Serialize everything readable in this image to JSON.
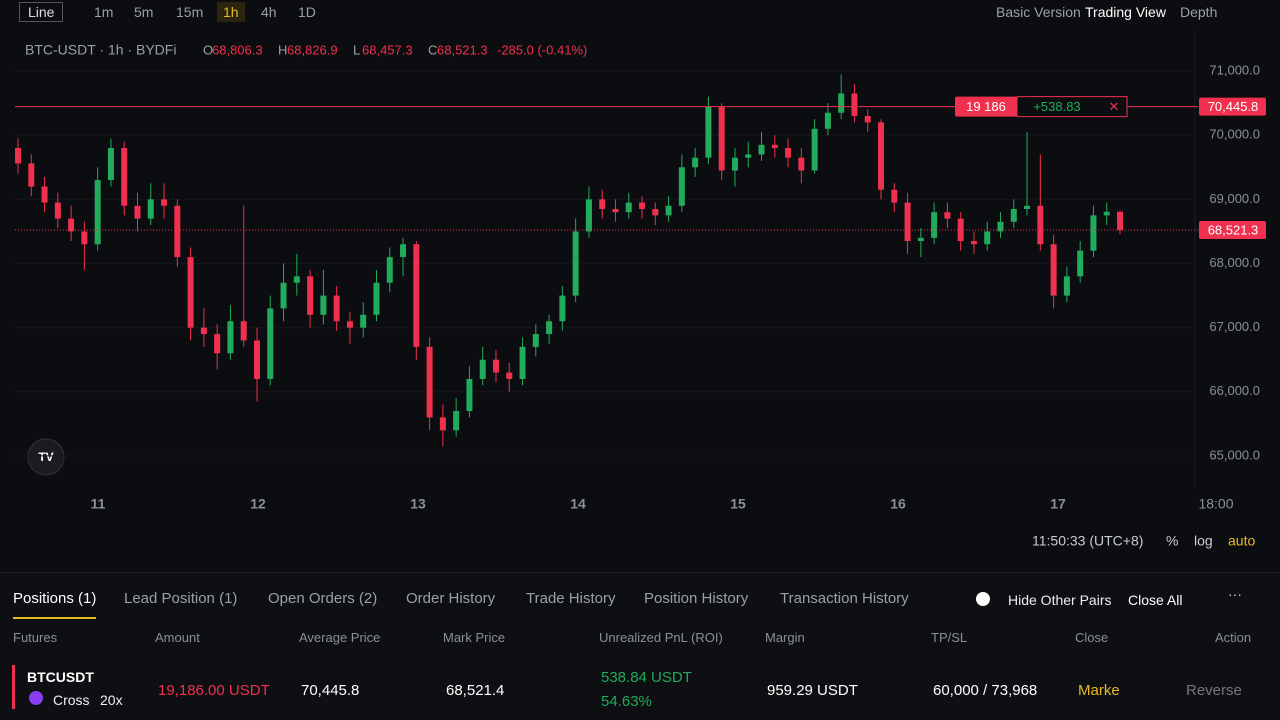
{
  "toolbar": {
    "chart_type": "Line",
    "intervals": [
      "1m",
      "5m",
      "15m",
      "1h",
      "4h",
      "1D"
    ],
    "active_interval": 3,
    "views": [
      "Basic Version",
      "Trading View"
    ],
    "active_view": 1,
    "depth": "Depth"
  },
  "chart_data": {
    "type": "candlestick",
    "title": "BTC-USDT · 1h · BYDFi",
    "ohlc_legend": [
      {
        "key": "O",
        "text": "68,806.3"
      },
      {
        "key": "H",
        "text": "68,826.9"
      },
      {
        "key": "L",
        "text": "68,457.3"
      },
      {
        "key": "C",
        "text": "68,521.3"
      }
    ],
    "change": "-285.0 (-0.41%)",
    "up_color": "#22ab5c",
    "down_color": "#f0304f",
    "candles": [
      [
        69800,
        69950,
        69400,
        69560
      ],
      [
        69560,
        69700,
        69050,
        69200
      ],
      [
        69200,
        69350,
        68800,
        68950
      ],
      [
        68950,
        69100,
        68550,
        68700
      ],
      [
        68700,
        68900,
        68350,
        68500
      ],
      [
        68500,
        68650,
        67900,
        68300
      ],
      [
        68300,
        69500,
        68200,
        69300
      ],
      [
        69300,
        69950,
        69200,
        69800
      ],
      [
        69800,
        69900,
        68750,
        68900
      ],
      [
        68900,
        69100,
        68500,
        68700
      ],
      [
        68700,
        69250,
        68600,
        69000
      ],
      [
        69000,
        69250,
        68700,
        68900
      ],
      [
        68900,
        69000,
        67950,
        68100
      ],
      [
        68100,
        68250,
        66800,
        67000
      ],
      [
        67000,
        67300,
        66700,
        66900
      ],
      [
        66900,
        67050,
        66350,
        66600
      ],
      [
        66600,
        67350,
        66500,
        67100
      ],
      [
        67100,
        68900,
        66700,
        66800
      ],
      [
        66800,
        67000,
        65850,
        66200
      ],
      [
        66200,
        67500,
        66100,
        67300
      ],
      [
        67300,
        68000,
        67100,
        67700
      ],
      [
        67700,
        68150,
        67500,
        67800
      ],
      [
        67800,
        67900,
        67000,
        67200
      ],
      [
        67200,
        67900,
        67050,
        67500
      ],
      [
        67500,
        67650,
        66950,
        67100
      ],
      [
        67100,
        67250,
        66750,
        67000
      ],
      [
        67000,
        67400,
        66850,
        67200
      ],
      [
        67200,
        67900,
        67100,
        67700
      ],
      [
        67700,
        68250,
        67550,
        68100
      ],
      [
        68100,
        68400,
        67800,
        68300
      ],
      [
        68300,
        68350,
        66500,
        66700
      ],
      [
        66700,
        66850,
        65400,
        65600
      ],
      [
        65600,
        65800,
        65150,
        65400
      ],
      [
        65400,
        65900,
        65300,
        65700
      ],
      [
        65700,
        66400,
        65600,
        66200
      ],
      [
        66200,
        66700,
        66100,
        66500
      ],
      [
        66500,
        66650,
        66150,
        66300
      ],
      [
        66300,
        66450,
        66000,
        66200
      ],
      [
        66200,
        66850,
        66100,
        66700
      ],
      [
        66700,
        67050,
        66550,
        66900
      ],
      [
        66900,
        67200,
        66750,
        67100
      ],
      [
        67100,
        67650,
        66950,
        67500
      ],
      [
        67500,
        68700,
        67400,
        68500
      ],
      [
        68500,
        69200,
        68400,
        69000
      ],
      [
        69000,
        69150,
        68700,
        68850
      ],
      [
        68850,
        69000,
        68650,
        68800
      ],
      [
        68800,
        69100,
        68700,
        68950
      ],
      [
        68950,
        69050,
        68700,
        68850
      ],
      [
        68850,
        68950,
        68600,
        68750
      ],
      [
        68750,
        69050,
        68650,
        68900
      ],
      [
        68900,
        69700,
        68800,
        69500
      ],
      [
        69500,
        69800,
        69350,
        69650
      ],
      [
        69650,
        70600,
        69550,
        70450
      ],
      [
        70450,
        70500,
        69300,
        69450
      ],
      [
        69450,
        69800,
        69200,
        69650
      ],
      [
        69650,
        69900,
        69500,
        69700
      ],
      [
        69700,
        70050,
        69600,
        69850
      ],
      [
        69850,
        70000,
        69650,
        69800
      ],
      [
        69800,
        69950,
        69500,
        69650
      ],
      [
        69650,
        69800,
        69250,
        69450
      ],
      [
        69450,
        70250,
        69400,
        70100
      ],
      [
        70100,
        70500,
        70000,
        70350
      ],
      [
        70350,
        70950,
        70250,
        70650
      ],
      [
        70650,
        70800,
        70200,
        70300
      ],
      [
        70300,
        70400,
        70050,
        70200
      ],
      [
        70200,
        70250,
        69000,
        69150
      ],
      [
        69150,
        69250,
        68800,
        68950
      ],
      [
        68950,
        69100,
        68150,
        68350
      ],
      [
        68350,
        68550,
        68100,
        68400
      ],
      [
        68400,
        68950,
        68300,
        68800
      ],
      [
        68800,
        68950,
        68550,
        68700
      ],
      [
        68700,
        68800,
        68200,
        68350
      ],
      [
        68350,
        68500,
        68150,
        68300
      ],
      [
        68300,
        68650,
        68200,
        68500
      ],
      [
        68500,
        68800,
        68400,
        68650
      ],
      [
        68650,
        69000,
        68550,
        68850
      ],
      [
        68850,
        70050,
        68750,
        68900
      ],
      [
        68900,
        69700,
        68200,
        68300
      ],
      [
        68300,
        68450,
        67300,
        67500
      ],
      [
        67500,
        67950,
        67400,
        67800
      ],
      [
        67800,
        68350,
        67700,
        68200
      ],
      [
        68200,
        68900,
        68100,
        68750
      ],
      [
        68750,
        68950,
        68600,
        68806.3
      ],
      [
        68806.3,
        68826.9,
        68457.3,
        68521.3
      ]
    ],
    "ylim": [
      64500,
      71500
    ],
    "yticks": [
      {
        "value": 65000,
        "label": "65,000.0"
      },
      {
        "value": 66000,
        "label": "66,000.0"
      },
      {
        "value": 67000,
        "label": "67,000.0"
      },
      {
        "value": 68000,
        "label": "68,000.0"
      },
      {
        "value": 69000,
        "label": "69,000.0"
      },
      {
        "value": 70000,
        "label": "70,000.0"
      },
      {
        "value": 71000,
        "label": "71,000.0"
      }
    ],
    "xticks": [
      "11",
      "12",
      "13",
      "14",
      "15",
      "16",
      "17",
      "18:00"
    ],
    "current_price": {
      "value": 68521.3,
      "label": "68,521.3"
    },
    "position_line": {
      "value": 70445.8,
      "label": "70,445.8",
      "size": "19 186",
      "pnl": "+538.83"
    },
    "status": {
      "time": "11:50:33 (UTC+8)",
      "percent": "%",
      "log": "log",
      "auto": "auto"
    }
  },
  "panel": {
    "tabs": [
      "Positions (1)",
      "Lead Position (1)",
      "Open Orders (2)",
      "Order History",
      "Trade History",
      "Position History",
      "Transaction History"
    ],
    "hide_pairs": "Hide Other Pairs",
    "close_all": "Close All",
    "headers": [
      "Futures",
      "Amount",
      "Average Price",
      "Mark Price",
      "Unrealized PnL (ROI)",
      "Margin",
      "TP/SL",
      "Close",
      "Action"
    ],
    "row": {
      "symbol": "BTCUSDT",
      "margin_mode": "Cross",
      "leverage": "20x",
      "amount": "19,186.00 USDT",
      "avg_price": "70,445.8",
      "mark_price": "68,521.4",
      "pnl": "538.84 USDT",
      "roi": "54.63%",
      "margin": "959.29 USDT",
      "tpsl": "60,000 / 73,968",
      "close": "Marke",
      "action": "Reverse"
    }
  }
}
